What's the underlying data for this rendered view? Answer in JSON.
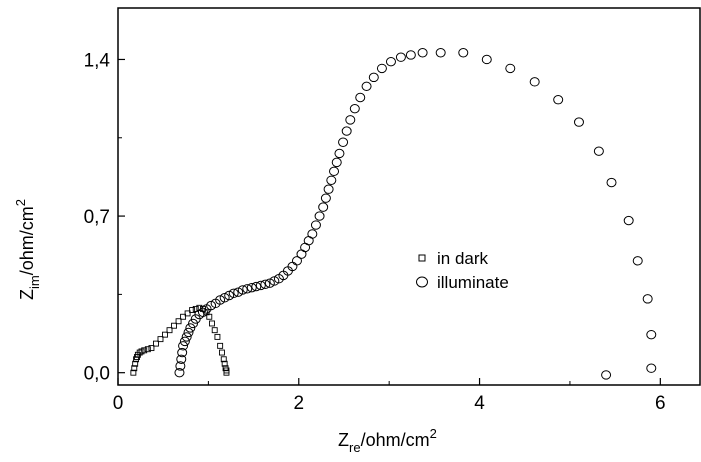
{
  "chart_data": {
    "type": "scatter",
    "xlabel": {
      "main": "Z",
      "sub": "re",
      "unit": "/ohm/cm",
      "sup": "2"
    },
    "ylabel": {
      "main": "Z",
      "sub": "im",
      "unit": "/ohm/cm",
      "sup": "2"
    },
    "xlim": [
      0,
      6.45
    ],
    "ylim": [
      -0.055,
      1.63
    ],
    "xticks": [
      0,
      2,
      4,
      6
    ],
    "xtick_labels": [
      "0",
      "2",
      "4",
      "6"
    ],
    "yticks": [
      0.0,
      0.7,
      1.4
    ],
    "ytick_labels": [
      "0,0",
      "0,7",
      "1,4"
    ],
    "grid": false,
    "legend": "center-right",
    "series": [
      {
        "name": "in dark",
        "marker": "square",
        "x": [
          0.17,
          0.18,
          0.19,
          0.2,
          0.21,
          0.22,
          0.24,
          0.26,
          0.29,
          0.33,
          0.37,
          0.42,
          0.47,
          0.52,
          0.57,
          0.62,
          0.67,
          0.72,
          0.77,
          0.82,
          0.86,
          0.9,
          0.94,
          0.98,
          1.01,
          1.04,
          1.07,
          1.1,
          1.13,
          1.15,
          1.17,
          1.18,
          1.19,
          1.2,
          1.2
        ],
        "y": [
          0.0,
          0.02,
          0.04,
          0.06,
          0.07,
          0.08,
          0.09,
          0.095,
          0.1,
          0.105,
          0.11,
          0.13,
          0.15,
          0.17,
          0.19,
          0.21,
          0.23,
          0.25,
          0.265,
          0.28,
          0.285,
          0.29,
          0.285,
          0.27,
          0.25,
          0.22,
          0.19,
          0.16,
          0.12,
          0.09,
          0.06,
          0.04,
          0.02,
          0.01,
          0.0
        ]
      },
      {
        "name": "illuminate",
        "marker": "circle",
        "x": [
          0.68,
          0.69,
          0.7,
          0.71,
          0.72,
          0.74,
          0.76,
          0.78,
          0.8,
          0.83,
          0.86,
          0.9,
          0.94,
          0.98,
          1.03,
          1.08,
          1.13,
          1.18,
          1.23,
          1.28,
          1.33,
          1.38,
          1.43,
          1.48,
          1.53,
          1.58,
          1.63,
          1.68,
          1.73,
          1.78,
          1.83,
          1.88,
          1.93,
          1.98,
          2.03,
          2.07,
          2.11,
          2.15,
          2.19,
          2.23,
          2.27,
          2.3,
          2.33,
          2.36,
          2.39,
          2.42,
          2.45,
          2.49,
          2.53,
          2.57,
          2.62,
          2.68,
          2.75,
          2.83,
          2.92,
          3.02,
          3.13,
          3.24,
          3.37,
          3.57,
          3.82,
          4.08,
          4.34,
          4.61,
          4.87,
          5.1,
          5.32,
          5.46,
          5.65,
          5.75,
          5.86,
          5.9
        ],
        "y": [
          0.0,
          0.03,
          0.06,
          0.09,
          0.12,
          0.14,
          0.16,
          0.18,
          0.2,
          0.22,
          0.24,
          0.26,
          0.27,
          0.285,
          0.3,
          0.31,
          0.325,
          0.335,
          0.345,
          0.355,
          0.36,
          0.37,
          0.375,
          0.38,
          0.385,
          0.39,
          0.395,
          0.4,
          0.41,
          0.42,
          0.435,
          0.455,
          0.475,
          0.5,
          0.53,
          0.56,
          0.59,
          0.62,
          0.66,
          0.7,
          0.74,
          0.78,
          0.82,
          0.86,
          0.9,
          0.94,
          0.98,
          1.03,
          1.08,
          1.13,
          1.18,
          1.23,
          1.28,
          1.32,
          1.36,
          1.39,
          1.41,
          1.42,
          1.43,
          1.43,
          1.43,
          1.4,
          1.36,
          1.3,
          1.22,
          1.12,
          0.99,
          0.85,
          0.68,
          0.5,
          0.33,
          0.17
        ],
        "extra_points": [
          [
            5.4,
            -0.01
          ],
          [
            5.9,
            0.02
          ]
        ]
      }
    ]
  }
}
